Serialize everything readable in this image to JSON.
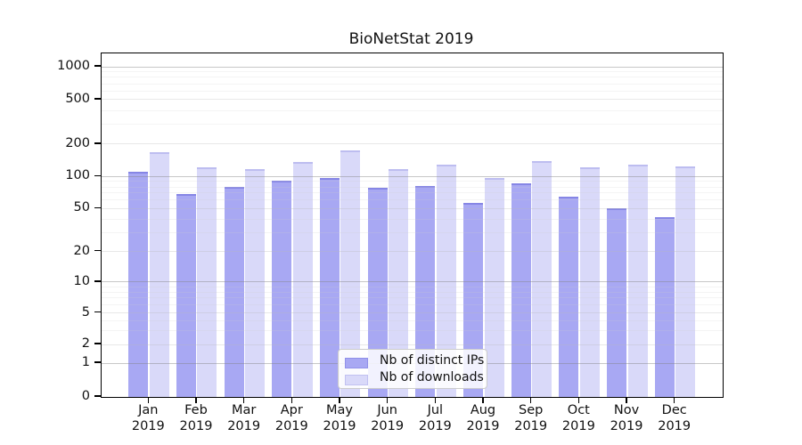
{
  "chart_data": {
    "type": "bar",
    "title": "BioNetStat 2019",
    "categories": [
      "Jan",
      "Feb",
      "Mar",
      "Apr",
      "May",
      "Jun",
      "Jul",
      "Aug",
      "Sep",
      "Oct",
      "Nov",
      "Dec"
    ],
    "category_year": "2019",
    "series": [
      {
        "name": "Nb of distinct IPs",
        "color": "#a8a8f3",
        "values": [
          110,
          68,
          80,
          91,
          97,
          78,
          82,
          57,
          86,
          65,
          50,
          42
        ]
      },
      {
        "name": "Nb of downloads",
        "color": "#d9d9f9",
        "values": [
          170,
          122,
          118,
          138,
          175,
          118,
          130,
          97,
          140,
          122,
          130,
          125
        ]
      }
    ],
    "y_ticks": [
      0,
      1,
      2,
      5,
      10,
      20,
      50,
      100,
      200,
      500,
      1000
    ],
    "ylim": [
      0,
      1000
    ],
    "y_scale": "symlog",
    "grid": "horizontal",
    "legend_position": "inside-bottom-center"
  }
}
